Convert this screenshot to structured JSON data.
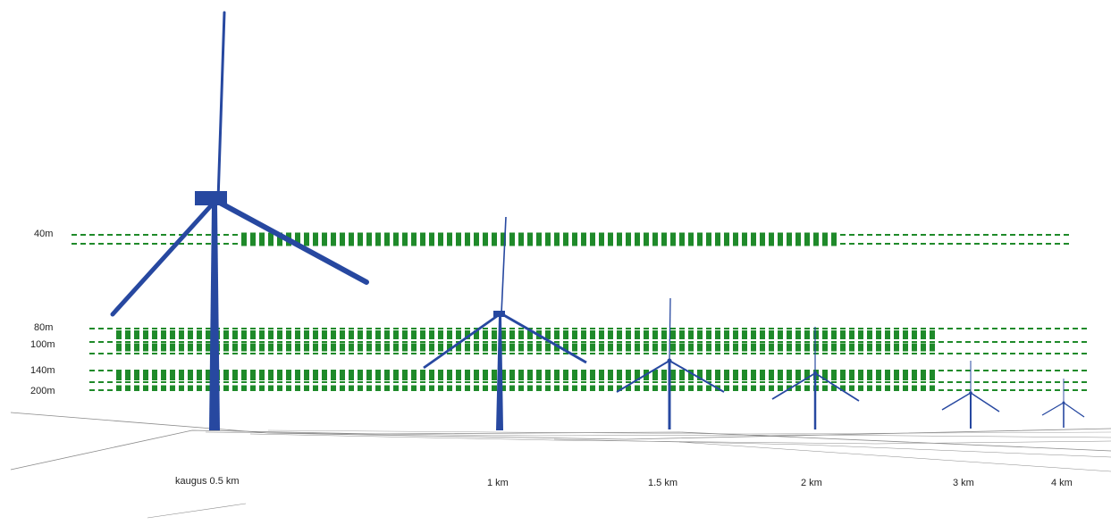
{
  "colors": {
    "turbine": "#2748a0",
    "band": "#1f8a2a",
    "ground": "#8a8a8a"
  },
  "height_labels": [
    "40m",
    "80m",
    "100m",
    "140m",
    "200m"
  ],
  "distance_labels": [
    "kaugus 0.5 km",
    "1 km",
    "1.5 km",
    "2 km",
    "3 km",
    "4 km"
  ]
}
